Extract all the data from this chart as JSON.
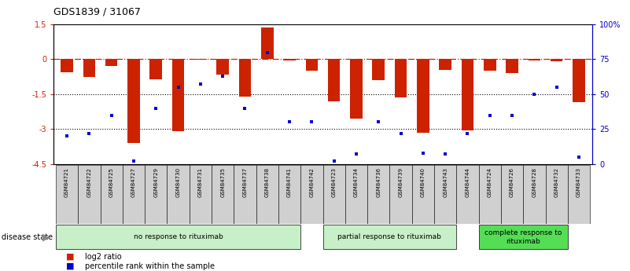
{
  "title": "GDS1839 / 31067",
  "samples": [
    "GSM84721",
    "GSM84722",
    "GSM84725",
    "GSM84727",
    "GSM84729",
    "GSM84730",
    "GSM84731",
    "GSM84735",
    "GSM84737",
    "GSM84738",
    "GSM84741",
    "GSM84742",
    "GSM84723",
    "GSM84734",
    "GSM84736",
    "GSM84739",
    "GSM84740",
    "GSM84743",
    "GSM84744",
    "GSM84724",
    "GSM84726",
    "GSM84728",
    "GSM84732",
    "GSM84733"
  ],
  "log2_ratio": [
    -0.55,
    -0.75,
    -0.3,
    -3.6,
    -0.85,
    -3.1,
    -0.02,
    -0.65,
    -1.6,
    1.35,
    -0.05,
    -0.5,
    -1.8,
    -2.55,
    -0.9,
    -1.65,
    -3.15,
    -0.45,
    -3.05,
    -0.5,
    -0.6,
    -0.05,
    -0.08,
    -1.85
  ],
  "percentile": [
    20,
    22,
    35,
    2,
    40,
    55,
    57,
    63,
    40,
    80,
    30,
    30,
    2,
    7,
    30,
    22,
    8,
    7,
    22,
    35,
    35,
    50,
    55,
    5
  ],
  "groups": [
    {
      "label": "no response to rituximab",
      "start": 0,
      "end": 11,
      "color": "#c8f0c8"
    },
    {
      "label": "partial response to rituximab",
      "start": 12,
      "end": 18,
      "color": "#c8f0c8"
    },
    {
      "label": "complete response to\nrituximab",
      "start": 19,
      "end": 23,
      "color": "#55dd55"
    }
  ],
  "bar_color": "#cc2200",
  "dot_color": "#0000cc",
  "ylim_left": [
    -4.5,
    1.5
  ],
  "ylim_right": [
    0,
    100
  ],
  "yticks_left": [
    1.5,
    0.0,
    -1.5,
    -3.0,
    -4.5
  ],
  "yticks_right": [
    100,
    75,
    50,
    25,
    0
  ],
  "legend_items": [
    {
      "label": "log2 ratio",
      "color": "#cc2200"
    },
    {
      "label": "percentile rank within the sample",
      "color": "#0000cc"
    }
  ]
}
